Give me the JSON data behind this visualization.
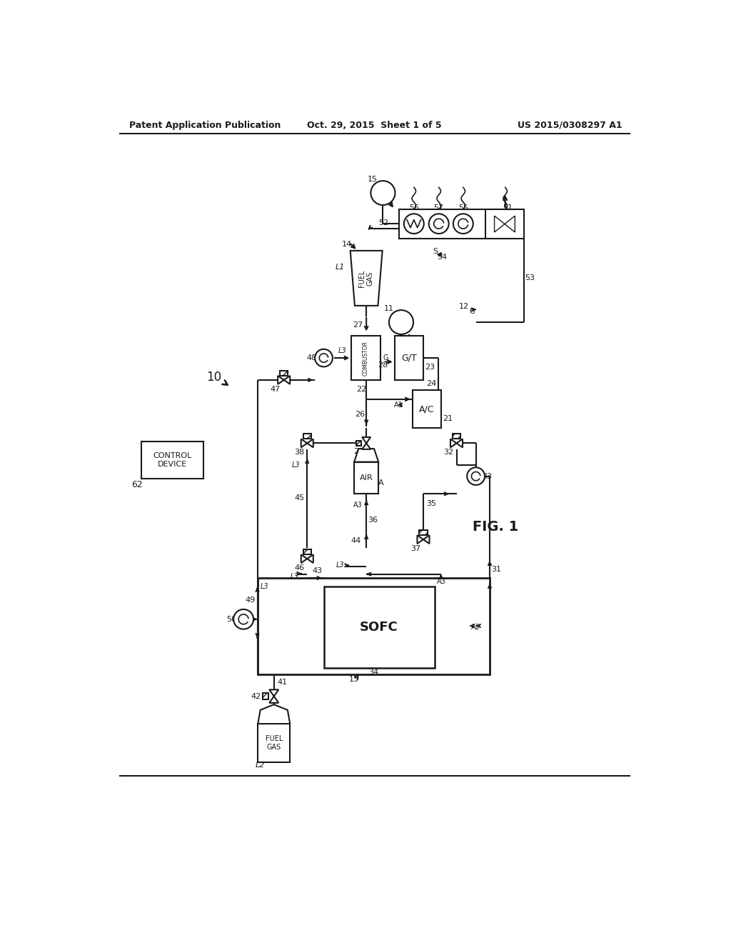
{
  "bg_color": "#ffffff",
  "lc": "#1a1a1a",
  "header_left": "Patent Application Publication",
  "header_center": "Oct. 29, 2015  Sheet 1 of 5",
  "header_right": "US 2015/0308297 A1",
  "fig_label": "FIG. 1"
}
